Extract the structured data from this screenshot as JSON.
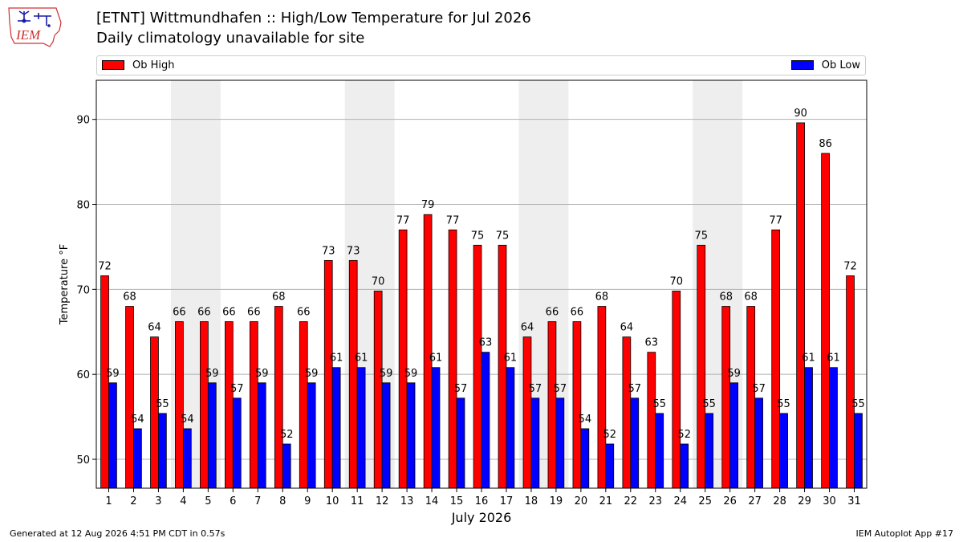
{
  "header": {
    "logo_text": "IEM",
    "title": "[ETNT] Wittmundhafen :: High/Low Temperature for Jul 2026",
    "subtitle": "Daily climatology unavailable for site"
  },
  "footer": {
    "generated": "Generated at 12 Aug 2026 4:51 PM CDT in 0.57s",
    "app": "IEM Autoplot App #17"
  },
  "colors": {
    "high": "#ff0000",
    "low": "#0000ff",
    "weekend_band": "#eeeeee",
    "grid": "#b0b0b0"
  },
  "chart_data": {
    "type": "bar",
    "xlabel": "July 2026",
    "ylabel": "Temperature °F",
    "ylim": [
      46.6,
      94.6
    ],
    "yticks": [
      50,
      60,
      70,
      80,
      90
    ],
    "grid": "y",
    "legend_position": "top",
    "categories": [
      "1",
      "2",
      "3",
      "4",
      "5",
      "6",
      "7",
      "8",
      "9",
      "10",
      "11",
      "12",
      "13",
      "14",
      "15",
      "16",
      "17",
      "18",
      "19",
      "20",
      "21",
      "22",
      "23",
      "24",
      "25",
      "26",
      "27",
      "28",
      "29",
      "30",
      "31"
    ],
    "weekend_bands": [
      [
        "4",
        "5"
      ],
      [
        "11",
        "12"
      ],
      [
        "18",
        "19"
      ],
      [
        "25",
        "26"
      ]
    ],
    "series": [
      {
        "name": "Ob High",
        "values": [
          71.6,
          68,
          64.4,
          66.2,
          66.2,
          66.2,
          66.2,
          68,
          66.2,
          73.4,
          73.4,
          69.8,
          77,
          78.8,
          77,
          75.2,
          75.2,
          64.4,
          66.2,
          66.2,
          68,
          64.4,
          62.6,
          69.8,
          75.2,
          68,
          68,
          77,
          89.6,
          86,
          71.6
        ],
        "labels": [
          "72",
          "68",
          "64",
          "66",
          "66",
          "66",
          "66",
          "68",
          "66",
          "73",
          "73",
          "70",
          "77",
          "79",
          "77",
          "75",
          "75",
          "64",
          "66",
          "66",
          "68",
          "64",
          "63",
          "70",
          "75",
          "68",
          "68",
          "77",
          "90",
          "86",
          "72"
        ]
      },
      {
        "name": "Ob Low",
        "values": [
          59,
          53.6,
          55.4,
          53.6,
          59,
          57.2,
          59,
          51.8,
          59,
          60.8,
          60.8,
          59,
          59,
          60.8,
          57.2,
          62.6,
          60.8,
          57.2,
          57.2,
          53.6,
          51.8,
          57.2,
          55.4,
          51.8,
          55.4,
          59,
          57.2,
          55.4,
          60.8,
          60.8,
          55.4
        ],
        "labels": [
          "59",
          "54",
          "55",
          "54",
          "59",
          "57",
          "59",
          "52",
          "59",
          "61",
          "61",
          "59",
          "59",
          "61",
          "57",
          "63",
          "61",
          "57",
          "57",
          "54",
          "52",
          "57",
          "55",
          "52",
          "55",
          "59",
          "57",
          "55",
          "61",
          "61",
          "55"
        ]
      }
    ]
  }
}
